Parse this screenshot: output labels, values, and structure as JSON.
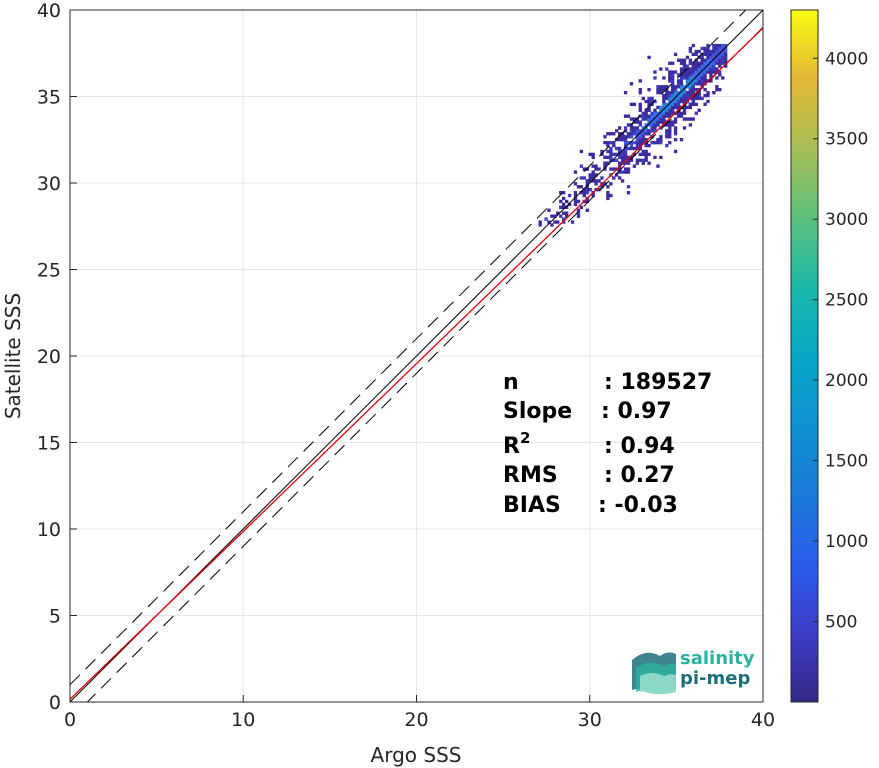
{
  "chart_data": {
    "type": "heatmap",
    "xlabel": "Argo SSS",
    "ylabel": "Satellite SSS",
    "xlim": [
      0,
      40
    ],
    "ylim": [
      0,
      40
    ],
    "xticks": [
      "0",
      "10",
      "20",
      "30",
      "40"
    ],
    "yticks": [
      "0",
      "5",
      "10",
      "15",
      "20",
      "25",
      "30",
      "35",
      "40"
    ],
    "grid": true,
    "colorbar": {
      "ticks": [
        "500",
        "1000",
        "1500",
        "2000",
        "2500",
        "3000",
        "3500",
        "4000"
      ],
      "min": 0,
      "max": 4300,
      "colormap": "parula"
    },
    "lines": [
      {
        "kind": "identity",
        "style": "solid",
        "color": "#000000",
        "intercept": 0,
        "slope": 1
      },
      {
        "kind": "offset",
        "style": "dashed",
        "color": "#000000",
        "intercept": 1,
        "slope": 1
      },
      {
        "kind": "offset",
        "style": "dashed",
        "color": "#000000",
        "intercept": -1,
        "slope": 1
      },
      {
        "kind": "regression",
        "style": "solid",
        "color": "#e8000b",
        "intercept": 0.16,
        "slope": 0.97
      }
    ],
    "density_region": {
      "x_range": [
        25,
        38
      ],
      "y_range": [
        27.5,
        38
      ],
      "peak_center": [
        35,
        35
      ]
    },
    "stats": [
      {
        "label": "n",
        "value": ": 189527"
      },
      {
        "label": "Slope",
        "value": ": 0.97"
      },
      {
        "label": "R",
        "sup": "2",
        "value": ": 0.94"
      },
      {
        "label": "RMS",
        "value": ": 0.27"
      },
      {
        "label": "BIAS",
        "value": ": -0.03"
      }
    ]
  },
  "logo": {
    "line1": "salinity",
    "line2": "pi-mep",
    "color1": "#2bb3a0",
    "color2": "#1d6f7a"
  }
}
